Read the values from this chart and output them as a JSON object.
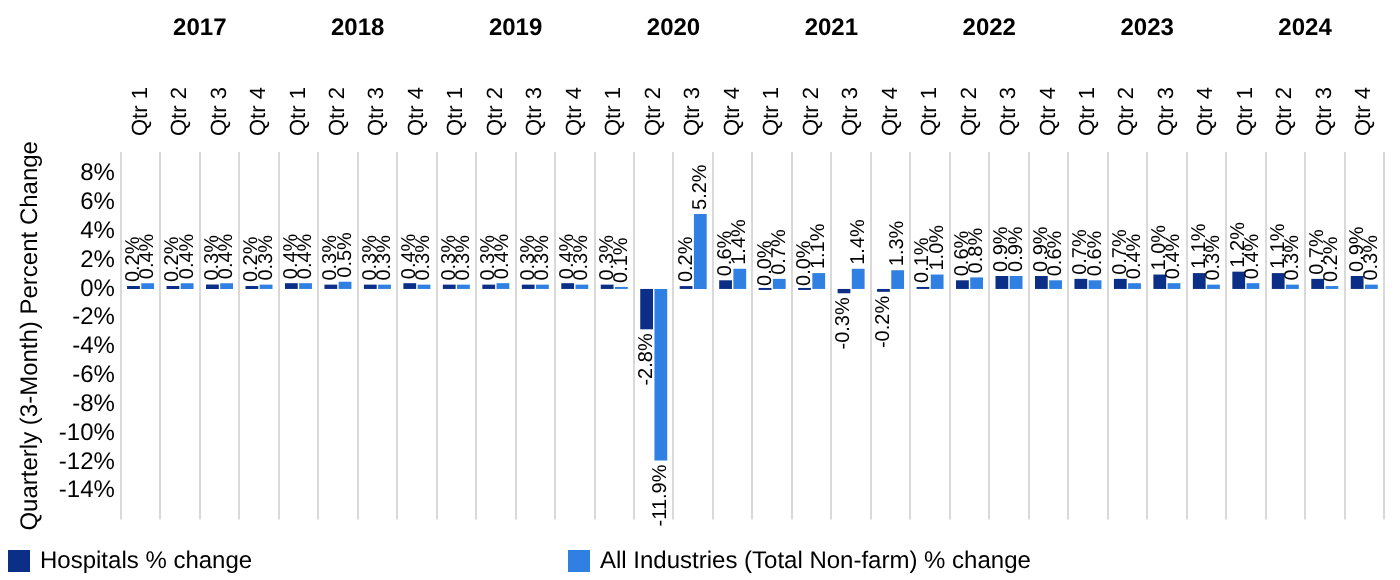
{
  "chart_data": {
    "type": "bar",
    "categories": [
      "Qtr 1",
      "Qtr 2",
      "Qtr 3",
      "Qtr 4",
      "Qtr 1",
      "Qtr 2",
      "Qtr 3",
      "Qtr 4",
      "Qtr 1",
      "Qtr 2",
      "Qtr 3",
      "Qtr 4",
      "Qtr 1",
      "Qtr 2",
      "Qtr 3",
      "Qtr 4",
      "Qtr 1",
      "Qtr 2",
      "Qtr 3",
      "Qtr 4",
      "Qtr 1",
      "Qtr 2",
      "Qtr 3",
      "Qtr 4",
      "Qtr 1",
      "Qtr 2",
      "Qtr 3",
      "Qtr 4",
      "Qtr 1",
      "Qtr 2",
      "Qtr 3",
      "Qtr 4"
    ],
    "annotations": [
      "2017",
      "2018",
      "2019",
      "2020",
      "2021",
      "2022",
      "2023",
      "2024"
    ],
    "ylabel": "Quarterly (3-Month) Percent Change",
    "series": [
      {
        "name": "Hospitals % change",
        "color": "#0b2f86",
        "values": [
          0.2,
          0.2,
          0.3,
          0.2,
          0.4,
          0.3,
          0.3,
          0.4,
          0.3,
          0.3,
          0.3,
          0.4,
          0.3,
          -2.8,
          0.2,
          0.6,
          0.0,
          0.0,
          -0.3,
          -0.2,
          0.1,
          0.6,
          0.9,
          0.9,
          0.7,
          0.7,
          1.0,
          1.1,
          1.2,
          1.1,
          0.7,
          0.9
        ],
        "value_labels": [
          "0.2%",
          "0.2%",
          "0.3%",
          "0.2%",
          "0.4%",
          "0.3%",
          "0.3%",
          "0.4%",
          "0.3%",
          "0.3%",
          "0.3%",
          "0.4%",
          "0.3%",
          "-2.8%",
          "0.2%",
          "0.6%",
          "0.0%",
          "0.0%",
          "-0.3%",
          "-0.2%",
          "0.1%",
          "0.6%",
          "0.9%",
          "0.9%",
          "0.7%",
          "0.7%",
          "1.0%",
          "1.1%",
          "1.2%",
          "1.1%",
          "0.7%",
          "0.9%"
        ]
      },
      {
        "name": "All Industries (Total Non-farm) % change",
        "color": "#2f80e2",
        "values": [
          0.4,
          0.4,
          0.4,
          0.3,
          0.4,
          0.5,
          0.3,
          0.3,
          0.3,
          0.4,
          0.3,
          0.3,
          0.1,
          -11.9,
          5.2,
          1.4,
          0.7,
          1.1,
          1.4,
          1.3,
          1.0,
          0.8,
          0.9,
          0.6,
          0.6,
          0.4,
          0.4,
          0.3,
          0.4,
          0.3,
          0.2,
          0.3
        ],
        "value_labels": [
          "0.4%",
          "0.4%",
          "0.4%",
          "0.3%",
          "0.4%",
          "0.5%",
          "0.3%",
          "0.3%",
          "0.3%",
          "0.4%",
          "0.3%",
          "0.3%",
          "0.1%",
          "-11.9%",
          "5.2%",
          "1.4%",
          "0.7%",
          "1.1%",
          "1.4%",
          "1.3%",
          "1.0%",
          "0.8%",
          "0.9%",
          "0.6%",
          "0.6%",
          "0.4%",
          "0.4%",
          "0.3%",
          "0.4%",
          "0.3%",
          "0.2%",
          "0.3%"
        ]
      }
    ],
    "ylim": [
      -16,
      9.5
    ],
    "yticks": [
      {
        "value": -14,
        "label": "-14%"
      },
      {
        "value": -12,
        "label": "-12%"
      },
      {
        "value": -10,
        "label": "-10%"
      },
      {
        "value": -8,
        "label": "-8%"
      },
      {
        "value": -6,
        "label": "-6%"
      },
      {
        "value": -4,
        "label": "-4%"
      },
      {
        "value": -2,
        "label": "-2%"
      },
      {
        "value": 0,
        "label": "0%"
      },
      {
        "value": 2,
        "label": "2%"
      },
      {
        "value": 4,
        "label": "4%"
      },
      {
        "value": 6,
        "label": "6%"
      },
      {
        "value": 8,
        "label": "8%"
      }
    ],
    "grid": "x",
    "legend": "bottom"
  }
}
